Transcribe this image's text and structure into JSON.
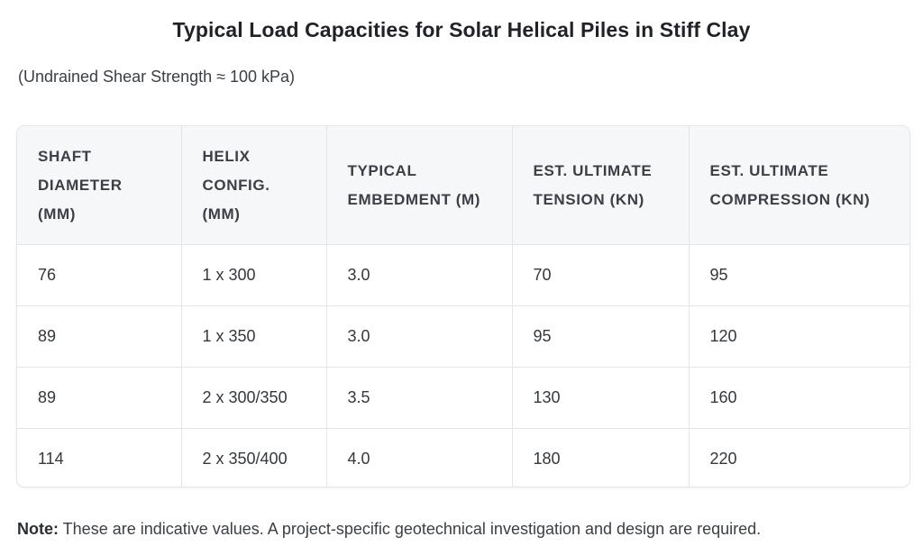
{
  "title": "Typical Load Capacities for Solar Helical Piles in Stiff Clay",
  "subtitle": "(Undrained Shear Strength ≈ 100 kPa)",
  "table": {
    "headers": [
      "Shaft Diameter (mm)",
      "Helix Config. (mm)",
      "Typical Embedment (m)",
      "Est. Ultimate Tension (kN)",
      "Est. Ultimate Compression (kN)"
    ],
    "rows": [
      [
        "76",
        "1 x 300",
        "3.0",
        "70",
        "95"
      ],
      [
        "89",
        "1 x 350",
        "3.0",
        "95",
        "120"
      ],
      [
        "89",
        "2 x 300/350",
        "3.5",
        "130",
        "160"
      ],
      [
        "114",
        "2 x 350/400",
        "4.0",
        "180",
        "220"
      ]
    ]
  },
  "note": {
    "label": "Note:",
    "text": " These are indicative values. A project-specific geotechnical investigation and design are required."
  }
}
